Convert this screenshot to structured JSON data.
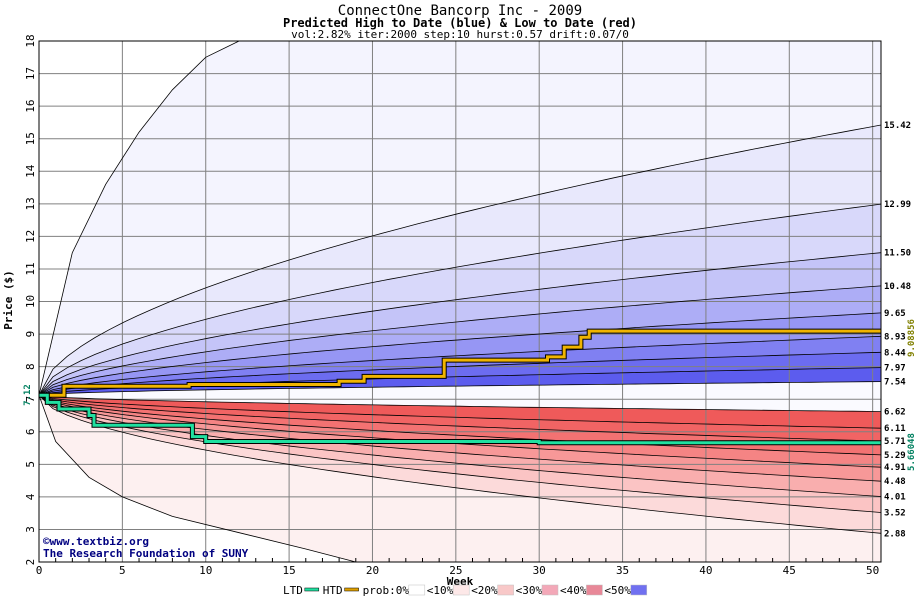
{
  "chart_data": {
    "type": "area",
    "title": "ConnectOne Bancorp Inc - 2009",
    "subtitle": "Predicted High to Date (blue) &  Low to Date (red)",
    "params": "vol:2.82% iter:2000 step:10 hurst:0.57 drift:0.07/0",
    "xlabel": "Week",
    "ylabel": "Price ($)",
    "xlim": [
      0,
      50.5
    ],
    "ylim": [
      2,
      18
    ],
    "x_ticks": [
      0,
      5,
      10,
      15,
      20,
      25,
      30,
      35,
      40,
      45,
      50
    ],
    "y_ticks": [
      2,
      3,
      4,
      5,
      6,
      7,
      8,
      9,
      10,
      11,
      12,
      13,
      14,
      15,
      16,
      17,
      18
    ],
    "grid": true,
    "start_price": 7.12,
    "start_price_label": "7.12",
    "high_probability_quantiles": [
      {
        "end_value": 15.42,
        "label": "15.42"
      },
      {
        "end_value": 12.99,
        "label": "12.99"
      },
      {
        "end_value": 11.5,
        "label": "11.50"
      },
      {
        "end_value": 10.48,
        "label": "10.48"
      },
      {
        "end_value": 9.65,
        "label": "9.65"
      },
      {
        "end_value": 8.93,
        "label": "8.93"
      },
      {
        "end_value": 8.44,
        "label": "8.44"
      },
      {
        "end_value": 7.97,
        "label": "7.97"
      },
      {
        "end_value": 7.54,
        "label": "7.54"
      }
    ],
    "low_probability_quantiles": [
      {
        "end_value": 6.62,
        "label": "6.62"
      },
      {
        "end_value": 6.11,
        "label": "6.11"
      },
      {
        "end_value": 5.71,
        "label": "5.71"
      },
      {
        "end_value": 5.29,
        "label": "5.29"
      },
      {
        "end_value": 4.91,
        "label": "4.91"
      },
      {
        "end_value": 4.48,
        "label": "4.48"
      },
      {
        "end_value": 4.01,
        "label": "4.01"
      },
      {
        "end_value": 3.52,
        "label": "3.52"
      },
      {
        "end_value": 2.88,
        "label": "2.88"
      }
    ],
    "outer_high_path": {
      "x": [
        0,
        2,
        4,
        6,
        8,
        10,
        12
      ],
      "y": [
        7.12,
        11.5,
        13.6,
        15.2,
        16.5,
        17.5,
        18
      ]
    },
    "outer_low_path": {
      "x": [
        0,
        1,
        3,
        5,
        8,
        12,
        16,
        19
      ],
      "y": [
        7.12,
        5.7,
        4.6,
        4.0,
        3.4,
        2.9,
        2.4,
        2.0
      ]
    },
    "htd_series": {
      "name": "HTD",
      "x": [
        0,
        1.5,
        1.5,
        9,
        9,
        18,
        18,
        19.5,
        19.5,
        24.3,
        24.3,
        30.5,
        30.5,
        31.5,
        31.5,
        32.5,
        32.5,
        33,
        33,
        50.5
      ],
      "y": [
        7.12,
        7.12,
        7.4,
        7.4,
        7.45,
        7.45,
        7.55,
        7.55,
        7.7,
        7.7,
        8.2,
        8.2,
        8.3,
        8.3,
        8.6,
        8.6,
        8.9,
        8.9,
        9.09,
        9.09
      ]
    },
    "ltd_series": {
      "name": "LTD",
      "x": [
        0,
        0.5,
        0.5,
        1.2,
        1.2,
        3,
        3,
        3.3,
        3.3,
        9.2,
        9.2,
        10,
        10,
        30,
        30,
        50.5
      ],
      "y": [
        7.12,
        7.12,
        6.9,
        6.9,
        6.7,
        6.7,
        6.5,
        6.5,
        6.2,
        6.2,
        5.85,
        5.85,
        5.7,
        5.7,
        5.66,
        5.66
      ]
    },
    "htd_final": "9.08856",
    "ltd_final": "5.66048",
    "legend": [
      {
        "label": "LTD",
        "color": "#20e0a0"
      },
      {
        "label": "HTD",
        "color": "#e0a000"
      },
      {
        "label": "prob:0%",
        "color": "#ffffff"
      },
      {
        "label": "<10%",
        "color": "#fde8e8"
      },
      {
        "label": "<20%",
        "color": "#f8c8c8"
      },
      {
        "label": "<30%",
        "color": "#f3a8b8"
      },
      {
        "label": "<40%",
        "color": "#e88898"
      },
      {
        "label": "<50%",
        "color": "#7070f0"
      }
    ],
    "legend_placement": "bottom",
    "credit": [
      "©www.textbiz.org",
      "The Research Foundation of SUNY"
    ],
    "colors": {
      "high_bands": [
        "#f4f4fe",
        "#e8e8fc",
        "#d8d8fa",
        "#c4c4f8",
        "#adadf6",
        "#9696f4",
        "#8080f2",
        "#6c6cf0",
        "#5c5cee"
      ],
      "low_bands": [
        "#fdf0f0",
        "#fcdada",
        "#fbc4c4",
        "#f9aeae",
        "#f79898",
        "#f58484",
        "#f37272",
        "#f16464",
        "#ef5a5a"
      ],
      "htd_line": "#f0b400",
      "ltd_line": "#20e0a0",
      "htd_final_text": "#808000",
      "ltd_final_text": "#008060",
      "start_text": "#008060"
    }
  }
}
